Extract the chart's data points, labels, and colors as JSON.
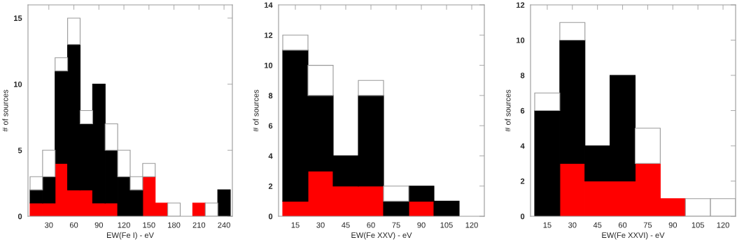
{
  "chart_data": [
    {
      "type": "bar",
      "stacked": true,
      "xlabel": "EW(Fe I) - eV",
      "ylabel": "# of sources",
      "x": [
        15,
        30,
        45,
        60,
        75,
        90,
        105,
        120,
        135,
        150,
        165,
        180,
        195,
        210,
        225,
        240
      ],
      "xlim": [
        5,
        250
      ],
      "ylim": [
        0,
        16
      ],
      "xticks": [
        30,
        60,
        90,
        120,
        150,
        180,
        210,
        240
      ],
      "yticks": [
        0,
        5,
        10,
        15
      ],
      "grid": false,
      "legend": false,
      "series": [
        {
          "color": "#ff0000",
          "values": [
            1,
            1,
            4,
            2,
            2,
            1,
            1,
            0,
            0,
            3,
            1,
            0,
            0,
            1,
            0,
            0
          ]
        },
        {
          "color": "#000000",
          "values": [
            1,
            2,
            7,
            11,
            5,
            9,
            4,
            3,
            2,
            0,
            0,
            0,
            0,
            0,
            0,
            2
          ]
        },
        {
          "color": "#ffffff",
          "values": [
            1,
            2,
            1,
            2,
            1,
            0,
            2,
            2,
            1,
            1,
            0,
            1,
            0,
            0,
            1,
            0
          ]
        }
      ]
    },
    {
      "type": "bar",
      "stacked": true,
      "xlabel": "EW(Fe XXV) - eV",
      "ylabel": "# of sources",
      "x": [
        15,
        30,
        45,
        60,
        75,
        90,
        105,
        120
      ],
      "xlim": [
        5,
        127.5
      ],
      "ylim": [
        0,
        14
      ],
      "xticks": [
        15,
        30,
        45,
        60,
        75,
        90,
        105,
        120
      ],
      "yticks": [
        0,
        2,
        4,
        6,
        8,
        10,
        12,
        14
      ],
      "grid": false,
      "legend": false,
      "series": [
        {
          "color": "#ff0000",
          "values": [
            1,
            3,
            2,
            2,
            0,
            1,
            0,
            0
          ]
        },
        {
          "color": "#000000",
          "values": [
            10,
            5,
            2,
            6,
            1,
            1,
            1,
            0
          ]
        },
        {
          "color": "#ffffff",
          "values": [
            1,
            2,
            0,
            1,
            1,
            0,
            0,
            0
          ]
        }
      ]
    },
    {
      "type": "bar",
      "stacked": true,
      "xlabel": "EW(Fe XXVI) - eV",
      "ylabel": "# of sources",
      "x": [
        15,
        30,
        45,
        60,
        75,
        90,
        105,
        120
      ],
      "xlim": [
        5,
        127.5
      ],
      "ylim": [
        0,
        12
      ],
      "xticks": [
        15,
        30,
        45,
        60,
        75,
        90,
        105,
        120
      ],
      "yticks": [
        0,
        2,
        4,
        6,
        8,
        10,
        12
      ],
      "grid": false,
      "legend": false,
      "series": [
        {
          "color": "#ff0000",
          "values": [
            0,
            3,
            2,
            2,
            3,
            1,
            0,
            0
          ]
        },
        {
          "color": "#000000",
          "values": [
            6,
            7,
            2,
            6,
            0,
            0,
            0,
            0
          ]
        },
        {
          "color": "#ffffff",
          "values": [
            1,
            1,
            0,
            0,
            2,
            0,
            1,
            1
          ]
        }
      ]
    }
  ]
}
